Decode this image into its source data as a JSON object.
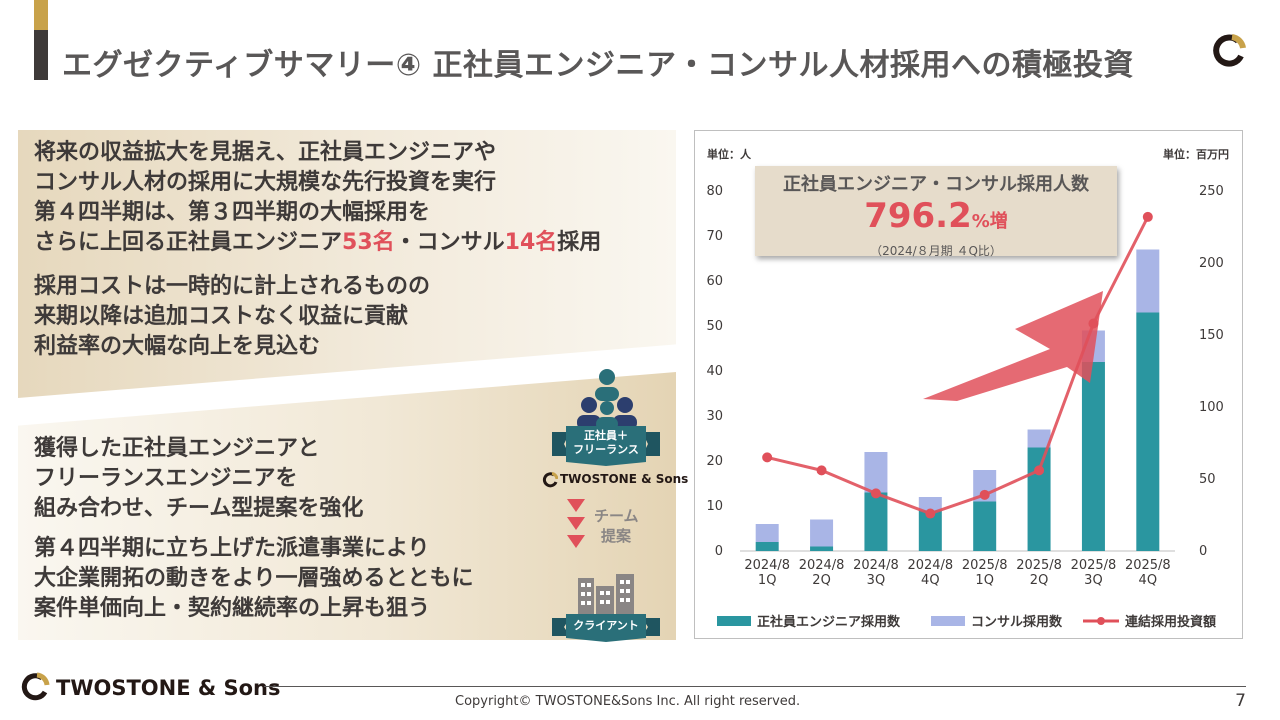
{
  "title": "エグゼクティブサマリー④ 正社員エンジニア・コンサル人材採用への積極投資",
  "top_block": {
    "p1_line1": "将来の収益拡大を見据え、正社員エンジニアや",
    "p1_line2": "コンサル人材の採用に大規模な先行投資を実行",
    "p1_line3": "第４四半期は、第３四半期の大幅採用を",
    "p1_line4_a": "さらに上回る正社員エンジニア",
    "p1_line4_num1": "53名",
    "p1_line4_b": "・コンサル",
    "p1_line4_num2": "14名",
    "p1_line4_c": "採用",
    "p2_line1": "採用コストは一時的に計上されるものの",
    "p2_line2": "来期以降は追加コストなく収益に貢献",
    "p2_line3": "利益率の大幅な向上を見込む"
  },
  "bottom_block": {
    "p1_line1": "獲得した正社員エンジニアと",
    "p1_line2": "フリーランスエンジニアを",
    "p1_line3": "組み合わせ、チーム型提案を強化",
    "p2_line1": "第４四半期に立ち上げた派遣事業により",
    "p2_line2": "大企業開拓の動きをより一層強めるとともに",
    "p2_line3": "案件単価向上・契約継続率の上昇も狙う"
  },
  "team_graphic": {
    "ribbon_top_line1": "正社員＋",
    "ribbon_top_line2": "フリーランス",
    "brand": "TWOSTONE & Sons",
    "proposal_line1": "チーム",
    "proposal_line2": "提案",
    "ribbon_bottom": "クライアント"
  },
  "callout": {
    "title": "正社員エンジニア・コンサル採用人数",
    "value": "796.2",
    "unit": "%増",
    "note": "（2024/８月期 ４Q比）"
  },
  "chart_data": {
    "type": "bar",
    "stacked": true,
    "title": "正社員エンジニア・コンサル採用人数",
    "left_unit": "単位：人",
    "right_unit": "単位：百万円",
    "categories": [
      "2024/8 1Q",
      "2024/8 2Q",
      "2024/8 3Q",
      "2024/8 4Q",
      "2025/8 1Q",
      "2025/8 2Q",
      "2025/8 3Q",
      "2025/8 4Q"
    ],
    "category_line1": [
      "2024/8",
      "2024/8",
      "2024/8",
      "2024/8",
      "2025/8",
      "2025/8",
      "2025/8",
      "2025/8"
    ],
    "category_line2": [
      "1Q",
      "2Q",
      "3Q",
      "4Q",
      "1Q",
      "2Q",
      "3Q",
      "4Q"
    ],
    "ylim": [
      0,
      80
    ],
    "yticks": [
      0,
      10,
      20,
      30,
      40,
      50,
      60,
      70,
      80
    ],
    "y2lim": [
      0,
      250
    ],
    "y2ticks": [
      0,
      50,
      100,
      150,
      200,
      250
    ],
    "series": [
      {
        "name": "正社員エンジニア採用数",
        "kind": "bar",
        "color": "#2a96a0",
        "values": [
          2,
          1,
          13,
          9,
          11,
          23,
          42,
          53
        ]
      },
      {
        "name": "コンサル採用数",
        "kind": "bar",
        "color": "#a9b5e6",
        "values": [
          4,
          6,
          9,
          3,
          7,
          4,
          7,
          14
        ]
      },
      {
        "name": "連結採用投資額",
        "kind": "line",
        "axis": "right",
        "color": "#e0505a",
        "values": [
          65,
          56,
          40,
          26,
          39,
          56,
          158,
          232
        ]
      }
    ]
  },
  "footer": {
    "brand": "TWOSTONE & Sons",
    "copyright": "Copyright© TWOSTONE&Sons Inc. All right reserved.",
    "page": "7"
  }
}
